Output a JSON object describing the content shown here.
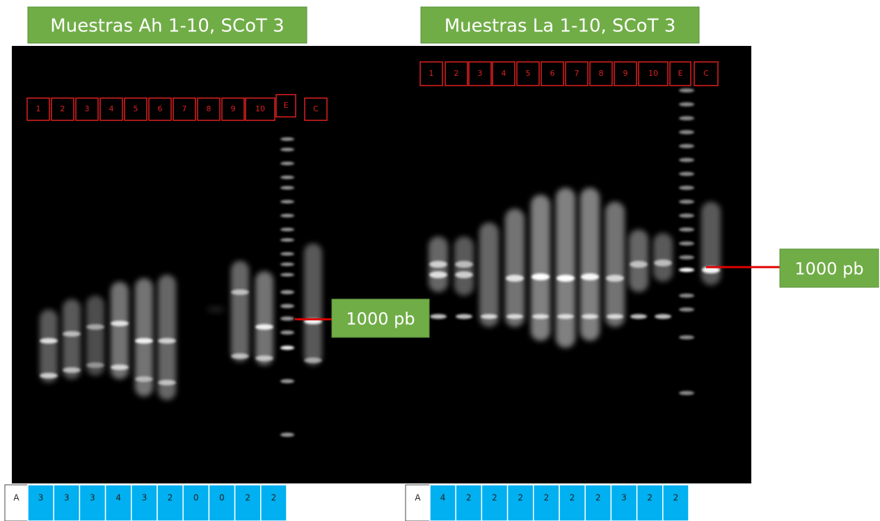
{
  "left": {
    "title": "Muestras Ah 1-10, SCoT 3",
    "lanes": [
      "1",
      "2",
      "3",
      "4",
      "5",
      "6",
      "7",
      "8",
      "9",
      "10",
      "E",
      "C"
    ],
    "marker": "1000 pb",
    "table": {
      "label": "A",
      "counts": [
        "3",
        "3",
        "3",
        "4",
        "3",
        "2",
        "0",
        "0",
        "2",
        "2"
      ]
    }
  },
  "right": {
    "title": "Muestras La 1-10, SCoT 3",
    "lanes": [
      "1",
      "2",
      "3",
      "4",
      "5",
      "6",
      "7",
      "8",
      "9",
      "10",
      "E",
      "C"
    ],
    "marker": "1000 pb",
    "table": {
      "label": "A",
      "counts": [
        "4",
        "2",
        "2",
        "2",
        "2",
        "2",
        "2",
        "3",
        "2",
        "2"
      ]
    }
  }
}
